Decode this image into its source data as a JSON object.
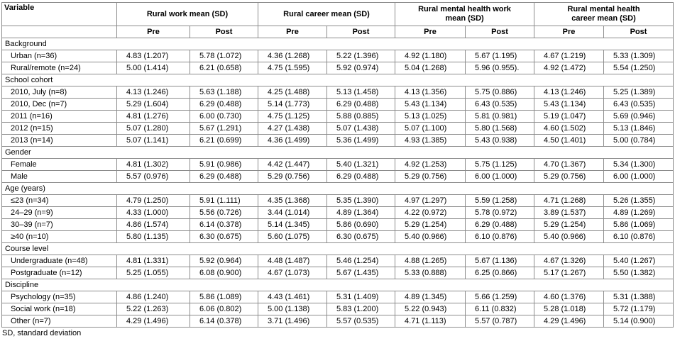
{
  "table": {
    "header": {
      "variable": "Variable",
      "groups": [
        "Rural work mean (SD)",
        "Rural career mean (SD)",
        "Rural mental health work mean (SD)",
        "Rural mental health career mean (SD)"
      ],
      "sub": [
        "Pre",
        "Post",
        "Pre",
        "Post",
        "Pre",
        "Post",
        "Pre",
        "Post"
      ]
    },
    "sections": [
      {
        "title": "Background",
        "rows": [
          {
            "label": "Urban (n=36)",
            "cells": [
              "4.83 (1.207)",
              "5.78 (1.072)",
              "4.36 (1.268)",
              "5.22 (1.396)",
              "4.92 (1.180)",
              "5.67 (1.195)",
              "4.67 (1.219)",
              "5.33 (1.309)"
            ]
          },
          {
            "label": "Rural/remote (n=24)",
            "cells": [
              "5.00 (1.414)",
              "6.21 (0.658)",
              "4.75 (1.595)",
              "5.92 (0.974)",
              "5.04 (1.268)",
              "5.96 (0.955).",
              "4.92 (1.472)",
              "5.54 (1.250)"
            ]
          }
        ]
      },
      {
        "title": "School cohort",
        "rows": [
          {
            "label": "2010, July (n=8)",
            "cells": [
              "4.13 (1.246)",
              "5.63 (1.188)",
              "4.25 (1.488)",
              "5.13 (1.458)",
              "4.13 (1.356)",
              "5.75 (0.886)",
              "4.13 (1.246)",
              "5.25 (1.389)"
            ]
          },
          {
            "label": "2010, Dec (n=7)",
            "cells": [
              "5.29 (1.604)",
              "6.29 (0.488)",
              "5.14 (1.773)",
              "6.29 (0.488)",
              "5.43 (1.134)",
              "6.43 (0.535)",
              "5.43 (1.134)",
              "6.43 (0.535)"
            ]
          },
          {
            "label": "2011 (n=16)",
            "cells": [
              "4.81 (1.276)",
              "6.00 (0.730)",
              "4.75 (1.125)",
              "5.88 (0.885)",
              "5.13 (1.025)",
              "5.81 (0.981)",
              "5.19 (1.047)",
              "5.69 (0.946)"
            ]
          },
          {
            "label": "2012 (n=15)",
            "cells": [
              "5.07 (1.280)",
              "5.67 (1.291)",
              "4.27 (1.438)",
              "5.07 (1.438)",
              "5.07 (1.100)",
              "5.80 (1.568)",
              "4.60 (1.502)",
              "5.13 (1.846)"
            ]
          },
          {
            "label": "2013 (n=14)",
            "cells": [
              "5.07 (1.141)",
              "6.21 (0.699)",
              "4.36 (1.499)",
              "5.36 (1.499)",
              "4.93 (1.385)",
              "5.43 (0.938)",
              "4.50 (1.401)",
              "5.00 (0.784)"
            ]
          }
        ]
      },
      {
        "title": "Gender",
        "rows": [
          {
            "label": "Female",
            "cells": [
              "4.81 (1.302)",
              "5.91 (0.986)",
              "4.42 (1.447)",
              "5.40 (1.321)",
              "4.92 (1.253)",
              "5.75 (1.125)",
              "4.70 (1.367)",
              "5.34 (1.300)"
            ]
          },
          {
            "label": "Male",
            "cells": [
              "5.57 (0.976)",
              "6.29 (0.488)",
              "5.29 (0.756)",
              "6.29 (0.488)",
              "5.29 (0.756)",
              "6.00 (1.000)",
              "5.29 (0.756)",
              "6.00 (1.000)"
            ]
          }
        ]
      },
      {
        "title": "Age (years)",
        "rows": [
          {
            "label": "≤23 (n=34)",
            "cells": [
              "4.79 (1.250)",
              "5.91 (1.111)",
              "4.35 (1.368)",
              "5.35 (1.390)",
              "4.97 (1.297)",
              "5.59 (1.258)",
              "4.71 (1.268)",
              "5.26 (1.355)"
            ]
          },
          {
            "label": "24–29 (n=9)",
            "cells": [
              "4.33 (1.000)",
              "5.56 (0.726)",
              "3.44 (1.014)",
              "4.89 (1.364)",
              "4.22 (0.972)",
              "5.78 (0.972)",
              "3.89 (1.537)",
              "4.89 (1.269)"
            ]
          },
          {
            "label": "30–39 (n=7)",
            "cells": [
              "4.86 (1.574)",
              "6.14 (0.378)",
              "5.14 (1.345)",
              "5.86 (0.690)",
              "5.29 (1.254)",
              "6.29 (0.488)",
              "5.29 (1.254)",
              "5.86 (1.069)"
            ]
          },
          {
            "label": "≥40 (n=10)",
            "cells": [
              "5.80 (1.135)",
              "6.30 (0.675)",
              "5.60 (1.075)",
              "6.30 (0.675)",
              "5.40 (0.966)",
              "6.10 (0.876)",
              "5.40 (0.966)",
              "6.10 (0.876)"
            ]
          }
        ]
      },
      {
        "title": "Course level",
        "rows": [
          {
            "label": "Undergraduate (n=48)",
            "cells": [
              "4.81 (1.331)",
              "5.92 (0.964)",
              "4.48 (1.487)",
              "5.46 (1.254)",
              "4.88 (1.265)",
              "5.67 (1.136)",
              "4.67 (1.326)",
              "5.40 (1.267)"
            ]
          },
          {
            "label": "Postgraduate (n=12)",
            "cells": [
              "5.25 (1.055)",
              "6.08 (0.900)",
              "4.67 (1.073)",
              "5.67 (1.435)",
              "5.33 (0.888)",
              "6.25 (0.866)",
              "5.17 (1.267)",
              "5.50 (1.382)"
            ]
          }
        ]
      },
      {
        "title": "Discipline",
        "rows": [
          {
            "label": "Psychology (n=35)",
            "cells": [
              "4.86 (1.240)",
              "5.86 (1.089)",
              "4.43 (1.461)",
              "5.31 (1.409)",
              "4.89 (1.345)",
              "5.66 (1.259)",
              "4.60 (1.376)",
              "5.31 (1.388)"
            ]
          },
          {
            "label": "Social work (n=18)",
            "cells": [
              "5.22 (1.263)",
              "6.06 (0.802)",
              "5.00 (1.138)",
              "5.83 (1.200)",
              "5.22 (0.943)",
              "6.11 (0.832)",
              "5.28 (1.018)",
              "5.72 (1.179)"
            ]
          },
          {
            "label": "Other (n=7)",
            "cells": [
              "4.29 (1.496)",
              "6.14 (0.378)",
              "3.71 (1.496)",
              "5.57 (0.535)",
              "4.71 (1.113)",
              "5.57 (0.787)",
              "4.29 (1.496)",
              "5.14 (0.900)"
            ]
          }
        ]
      }
    ],
    "footnote": "SD, standard deviation"
  }
}
